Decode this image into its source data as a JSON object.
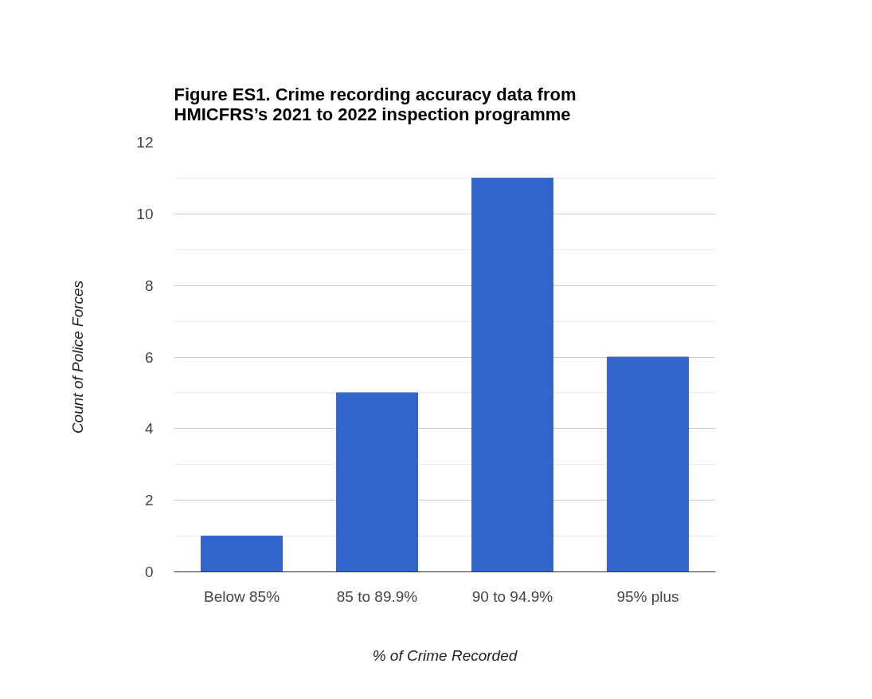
{
  "chart_data": {
    "type": "bar",
    "title": "Figure ES1. Crime recording accuracy data from HMICFRS’s 2021 to 2022 inspection programme",
    "xlabel": "% of Crime Recorded",
    "ylabel": "Count of Police Forces",
    "categories": [
      "Below 85%",
      "85 to 89.9%",
      "90 to 94.9%",
      "95% plus"
    ],
    "values": [
      1,
      5,
      11,
      6
    ],
    "color": "#3366cc",
    "ylim": [
      0,
      12
    ],
    "yticks": [
      0,
      2,
      4,
      6,
      8,
      10,
      12
    ],
    "grid": "y"
  }
}
